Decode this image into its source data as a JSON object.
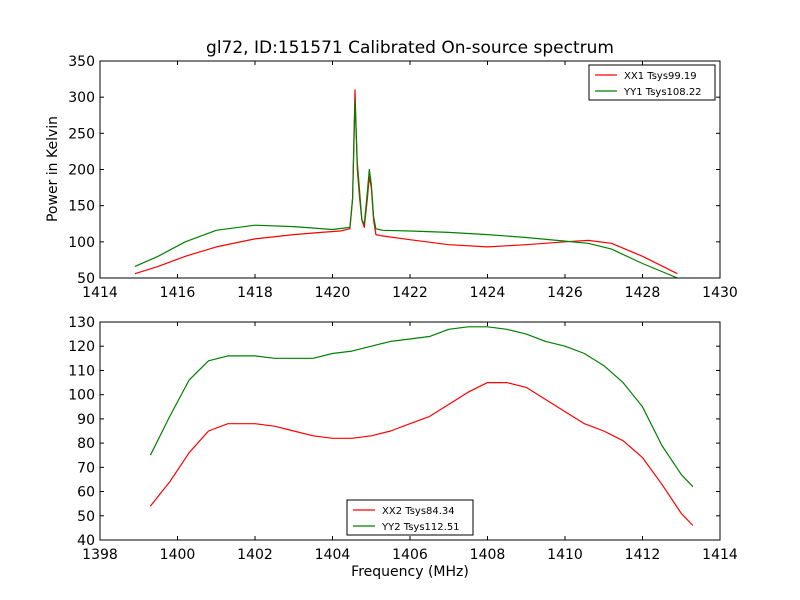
{
  "chart_data": {
    "title": "gl72, ID:151571 Calibrated On-source spectrum",
    "ylabel": "Power in Kelvin",
    "xlabel": "Frequency (MHz)",
    "panels": [
      {
        "type": "line",
        "xlim": [
          1414,
          1430
        ],
        "ylim": [
          50,
          350
        ],
        "xticks": [
          1414,
          1416,
          1418,
          1420,
          1422,
          1424,
          1426,
          1428,
          1430
        ],
        "yticks": [
          50,
          100,
          150,
          200,
          250,
          300,
          350
        ],
        "legend_position": "top-right",
        "series": [
          {
            "name": "XX1 Tsys99.19",
            "color": "#ff0000",
            "points": [
              [
                1414.9,
                56
              ],
              [
                1415.5,
                66
              ],
              [
                1416.2,
                80
              ],
              [
                1417.0,
                93
              ],
              [
                1418.0,
                104
              ],
              [
                1419.0,
                110
              ],
              [
                1419.7,
                113
              ],
              [
                1420.2,
                115
              ],
              [
                1420.45,
                118
              ],
              [
                1420.52,
                160
              ],
              [
                1420.58,
                310
              ],
              [
                1420.64,
                200
              ],
              [
                1420.7,
                160
              ],
              [
                1420.76,
                130
              ],
              [
                1420.82,
                120
              ],
              [
                1420.9,
                160
              ],
              [
                1420.95,
                190
              ],
              [
                1421.0,
                175
              ],
              [
                1421.06,
                130
              ],
              [
                1421.12,
                110
              ],
              [
                1421.3,
                108
              ],
              [
                1422.0,
                103
              ],
              [
                1423.0,
                96
              ],
              [
                1424.0,
                93
              ],
              [
                1425.0,
                96
              ],
              [
                1426.0,
                100
              ],
              [
                1426.6,
                102
              ],
              [
                1427.2,
                98
              ],
              [
                1428.0,
                80
              ],
              [
                1428.9,
                56
              ]
            ]
          },
          {
            "name": "YY1 Tsys108.22",
            "color": "#008000",
            "points": [
              [
                1414.9,
                66
              ],
              [
                1415.5,
                80
              ],
              [
                1416.2,
                100
              ],
              [
                1417.0,
                116
              ],
              [
                1418.0,
                123
              ],
              [
                1419.0,
                121
              ],
              [
                1420.0,
                117
              ],
              [
                1420.45,
                120
              ],
              [
                1420.52,
                160
              ],
              [
                1420.58,
                295
              ],
              [
                1420.64,
                210
              ],
              [
                1420.7,
                170
              ],
              [
                1420.76,
                130
              ],
              [
                1420.82,
                125
              ],
              [
                1420.9,
                170
              ],
              [
                1420.95,
                200
              ],
              [
                1421.0,
                180
              ],
              [
                1421.06,
                135
              ],
              [
                1421.12,
                118
              ],
              [
                1421.3,
                116
              ],
              [
                1422.0,
                115
              ],
              [
                1423.0,
                113
              ],
              [
                1424.0,
                110
              ],
              [
                1425.0,
                106
              ],
              [
                1426.0,
                101
              ],
              [
                1426.6,
                98
              ],
              [
                1427.2,
                90
              ],
              [
                1428.0,
                70
              ],
              [
                1428.9,
                50
              ]
            ]
          }
        ]
      },
      {
        "type": "line",
        "xlim": [
          1398,
          1414
        ],
        "ylim": [
          40,
          130
        ],
        "xticks": [
          1398,
          1400,
          1402,
          1404,
          1406,
          1408,
          1410,
          1412,
          1414
        ],
        "yticks": [
          40,
          50,
          60,
          70,
          80,
          90,
          100,
          110,
          120,
          130
        ],
        "legend_position": "bottom-center",
        "series": [
          {
            "name": "XX2 Tsys84.34",
            "color": "#ff0000",
            "points": [
              [
                1399.3,
                54
              ],
              [
                1399.8,
                64
              ],
              [
                1400.3,
                76
              ],
              [
                1400.8,
                85
              ],
              [
                1401.3,
                88
              ],
              [
                1402.0,
                88
              ],
              [
                1402.5,
                87
              ],
              [
                1403.0,
                85
              ],
              [
                1403.5,
                83
              ],
              [
                1404.0,
                82
              ],
              [
                1404.5,
                82
              ],
              [
                1405.0,
                83
              ],
              [
                1405.5,
                85
              ],
              [
                1406.0,
                88
              ],
              [
                1406.5,
                91
              ],
              [
                1407.0,
                96
              ],
              [
                1407.5,
                101
              ],
              [
                1408.0,
                105
              ],
              [
                1408.5,
                105
              ],
              [
                1409.0,
                103
              ],
              [
                1409.5,
                98
              ],
              [
                1410.0,
                93
              ],
              [
                1410.5,
                88
              ],
              [
                1411.0,
                85
              ],
              [
                1411.5,
                81
              ],
              [
                1412.0,
                74
              ],
              [
                1412.5,
                63
              ],
              [
                1413.0,
                51
              ],
              [
                1413.3,
                46
              ]
            ]
          },
          {
            "name": "YY2 Tsys112.51",
            "color": "#008000",
            "points": [
              [
                1399.3,
                75
              ],
              [
                1399.8,
                91
              ],
              [
                1400.3,
                106
              ],
              [
                1400.8,
                114
              ],
              [
                1401.3,
                116
              ],
              [
                1402.0,
                116
              ],
              [
                1402.5,
                115
              ],
              [
                1403.0,
                115
              ],
              [
                1403.5,
                115
              ],
              [
                1404.0,
                117
              ],
              [
                1404.5,
                118
              ],
              [
                1405.0,
                120
              ],
              [
                1405.5,
                122
              ],
              [
                1406.0,
                123
              ],
              [
                1406.5,
                124
              ],
              [
                1407.0,
                127
              ],
              [
                1407.5,
                128
              ],
              [
                1408.0,
                128
              ],
              [
                1408.5,
                127
              ],
              [
                1409.0,
                125
              ],
              [
                1409.5,
                122
              ],
              [
                1410.0,
                120
              ],
              [
                1410.5,
                117
              ],
              [
                1411.0,
                112
              ],
              [
                1411.5,
                105
              ],
              [
                1412.0,
                95
              ],
              [
                1412.5,
                79
              ],
              [
                1413.0,
                67
              ],
              [
                1413.3,
                62
              ]
            ]
          }
        ]
      }
    ]
  }
}
